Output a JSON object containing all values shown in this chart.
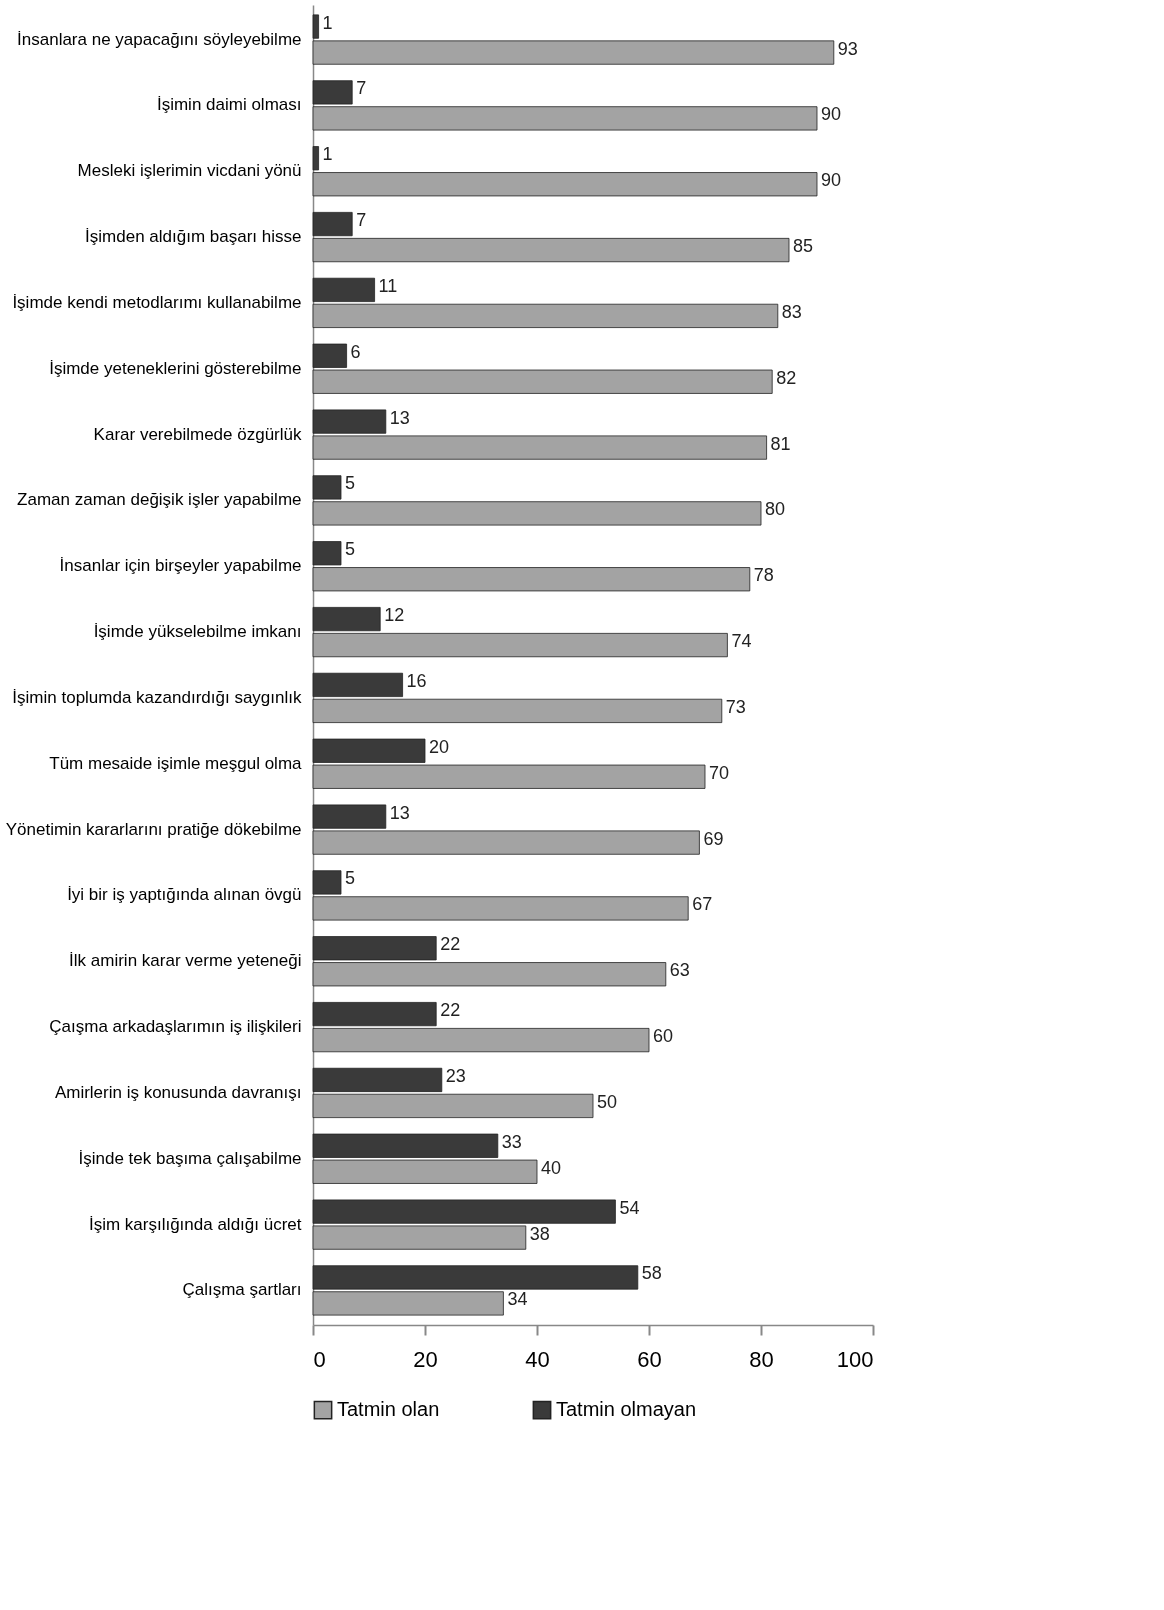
{
  "chart_data": {
    "type": "bar",
    "orientation": "horizontal",
    "categories": [
      "İnsanlara ne yapacağını söyleyebilme",
      "İşimin daimi olması",
      "Mesleki işlerimin vicdani yönü",
      "İşimden aldığım başarı hisse",
      "İşimde kendi metodlarımı kullanabilme",
      "İşimde yeteneklerini gösterebilme",
      "Karar verebilmede özgürlük",
      "Zaman zaman değişik işler yapabilme",
      "İnsanlar için birşeyler yapabilme",
      "İşimde yükselebilme imkanı",
      "İşimin toplumda kazandırdığı saygınlık",
      "Tüm mesaide işimle meşgul olma",
      "Yönetimin kararlarını pratiğe dökebilme",
      "İyi bir iş yaptığında alınan övgü",
      "İlk amirin karar verme yeteneği",
      "Çaışma arkadaşlarımın iş ilişkileri",
      "Amirlerin iş konusunda davranışı",
      "İşinde tek başıma çalışabilme",
      "İşim karşılığında aldığı ücret",
      "Çalışma şartları"
    ],
    "series": [
      {
        "name": "Tatmin olan",
        "color": "#a3a3a3",
        "values": [
          93,
          90,
          90,
          85,
          83,
          82,
          81,
          80,
          78,
          74,
          73,
          70,
          69,
          67,
          63,
          60,
          50,
          40,
          38,
          34
        ]
      },
      {
        "name": "Tatmin olmayan",
        "color": "#3a3a3a",
        "values": [
          1,
          7,
          1,
          7,
          11,
          6,
          13,
          5,
          5,
          12,
          16,
          20,
          13,
          5,
          22,
          22,
          23,
          33,
          54,
          58
        ]
      }
    ],
    "xlim": [
      0,
      100
    ],
    "xticks": [
      0,
      20,
      40,
      60,
      80,
      100
    ],
    "data_labels": true,
    "grid": false,
    "legend": "bottom"
  }
}
